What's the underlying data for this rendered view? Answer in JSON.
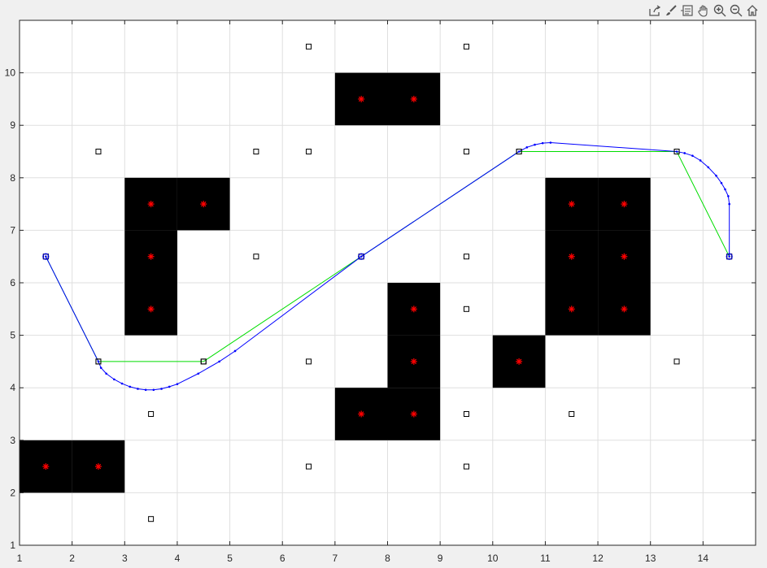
{
  "toolbar": {
    "icons": [
      "export-icon",
      "brush-icon",
      "datatip-icon",
      "pan-icon",
      "zoom-in-icon",
      "zoom-out-icon",
      "home-icon"
    ]
  },
  "chart_data": {
    "type": "scatter",
    "title": "",
    "xlabel": "",
    "ylabel": "",
    "xlim": [
      1,
      15
    ],
    "ylim": [
      1,
      11
    ],
    "grid": true,
    "xticks": [
      1,
      2,
      3,
      4,
      5,
      6,
      7,
      8,
      9,
      10,
      11,
      12,
      13,
      14
    ],
    "yticks": [
      1,
      2,
      3,
      4,
      5,
      6,
      7,
      8,
      9,
      10
    ],
    "obstacles": [
      {
        "x": 1.5,
        "y": 2.5
      },
      {
        "x": 2.5,
        "y": 2.5
      },
      {
        "x": 3.5,
        "y": 5.5
      },
      {
        "x": 3.5,
        "y": 6.5
      },
      {
        "x": 3.5,
        "y": 7.5
      },
      {
        "x": 4.5,
        "y": 7.5
      },
      {
        "x": 7.5,
        "y": 9.5
      },
      {
        "x": 8.5,
        "y": 9.5
      },
      {
        "x": 7.5,
        "y": 3.5
      },
      {
        "x": 8.5,
        "y": 3.5
      },
      {
        "x": 8.5,
        "y": 4.5
      },
      {
        "x": 8.5,
        "y": 5.5
      },
      {
        "x": 10.5,
        "y": 4.5
      },
      {
        "x": 11.5,
        "y": 5.5
      },
      {
        "x": 12.5,
        "y": 5.5
      },
      {
        "x": 11.5,
        "y": 6.5
      },
      {
        "x": 12.5,
        "y": 6.5
      },
      {
        "x": 11.5,
        "y": 7.5
      },
      {
        "x": 12.5,
        "y": 7.5
      }
    ],
    "obstacle_color": "#000000",
    "obstacle_marker_color": "#ff0000",
    "nodes": [
      {
        "x": 6.5,
        "y": 10.5
      },
      {
        "x": 9.5,
        "y": 10.5
      },
      {
        "x": 2.5,
        "y": 8.5
      },
      {
        "x": 5.5,
        "y": 8.5
      },
      {
        "x": 6.5,
        "y": 8.5
      },
      {
        "x": 9.5,
        "y": 8.5
      },
      {
        "x": 10.5,
        "y": 8.5
      },
      {
        "x": 13.5,
        "y": 8.5
      },
      {
        "x": 1.5,
        "y": 6.5
      },
      {
        "x": 5.5,
        "y": 6.5
      },
      {
        "x": 7.5,
        "y": 6.5
      },
      {
        "x": 9.5,
        "y": 6.5
      },
      {
        "x": 14.5,
        "y": 6.5
      },
      {
        "x": 9.5,
        "y": 5.5
      },
      {
        "x": 2.5,
        "y": 4.5
      },
      {
        "x": 4.5,
        "y": 4.5
      },
      {
        "x": 6.5,
        "y": 4.5
      },
      {
        "x": 13.5,
        "y": 4.5
      },
      {
        "x": 3.5,
        "y": 3.5
      },
      {
        "x": 9.5,
        "y": 3.5
      },
      {
        "x": 11.5,
        "y": 3.5
      },
      {
        "x": 6.5,
        "y": 2.5
      },
      {
        "x": 9.5,
        "y": 2.5
      },
      {
        "x": 3.5,
        "y": 1.5
      }
    ],
    "series": [
      {
        "color": "#00dd00",
        "x": [
          1.5,
          2.5,
          4.5,
          7.5,
          10.5,
          13.5,
          14.5
        ],
        "y": [
          6.5,
          4.5,
          4.5,
          6.5,
          8.5,
          8.5,
          6.5
        ]
      },
      {
        "color": "#0000ff",
        "x": [
          1.5,
          2.5,
          2.55,
          2.65,
          2.8,
          2.95,
          3.1,
          3.25,
          3.4,
          3.55,
          3.7,
          3.85,
          4.0,
          4.4,
          4.8,
          5.1,
          7.5,
          10.5,
          10.65,
          10.8,
          10.95,
          11.1,
          13.5,
          13.65,
          13.8,
          13.95,
          14.1,
          14.25,
          14.35,
          14.42,
          14.48,
          14.5,
          14.5
        ],
        "y": [
          6.5,
          4.5,
          4.38,
          4.27,
          4.16,
          4.08,
          4.02,
          3.98,
          3.96,
          3.96,
          3.98,
          4.02,
          4.07,
          4.27,
          4.5,
          4.7,
          6.5,
          8.5,
          8.58,
          8.63,
          8.66,
          8.67,
          8.5,
          8.47,
          8.42,
          8.33,
          8.2,
          8.04,
          7.9,
          7.78,
          7.65,
          7.5,
          6.5
        ],
        "markers": true
      }
    ]
  }
}
